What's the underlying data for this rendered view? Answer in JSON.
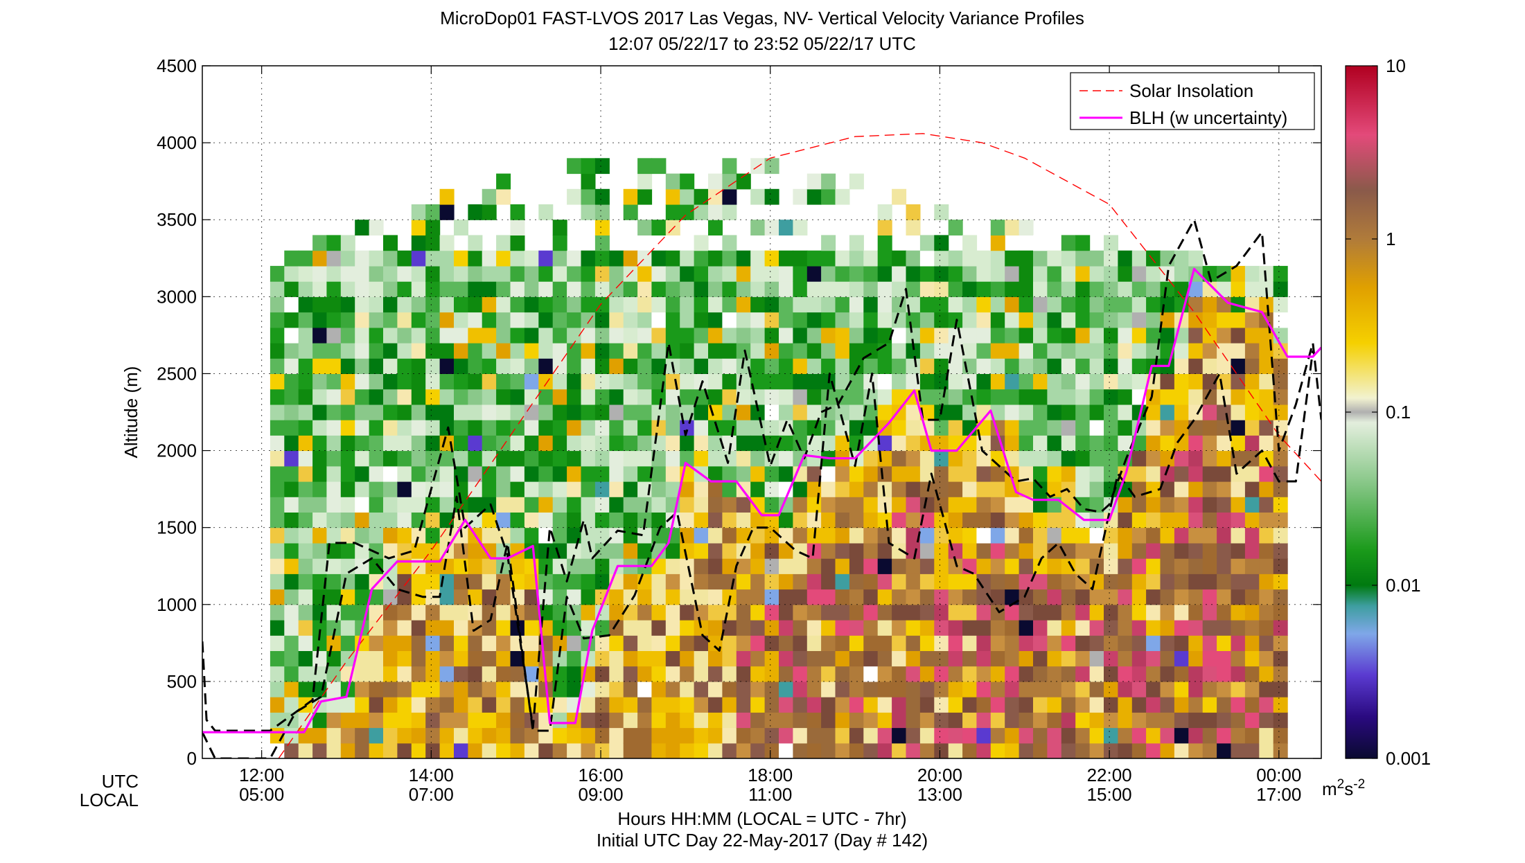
{
  "chart_data": {
    "type": "heatmap",
    "title": "MicroDop01 FAST-LVOS 2017 Las Vegas, NV- Vertical Velocity Variance Profiles",
    "subtitle": "12:07 05/22/17 to 23:52 05/22/17  UTC",
    "ylabel": "Altitude (m)",
    "xlabel": "Hours HH:MM  (LOCAL = UTC - 7hr)",
    "xlabel2": "Initial UTC Day 22-May-2017 (Day # 142)",
    "x_row_labels": [
      "UTC",
      "LOCAL"
    ],
    "xlim_utc_hours": [
      11.3,
      24.5
    ],
    "ylim": [
      0,
      4500
    ],
    "grid": true,
    "xticks": [
      {
        "hour": 12,
        "utc": "12:00",
        "local": "05:00"
      },
      {
        "hour": 14,
        "utc": "14:00",
        "local": "07:00"
      },
      {
        "hour": 16,
        "utc": "16:00",
        "local": "09:00"
      },
      {
        "hour": 18,
        "utc": "18:00",
        "local": "11:00"
      },
      {
        "hour": 20,
        "utc": "20:00",
        "local": "13:00"
      },
      {
        "hour": 22,
        "utc": "22:00",
        "local": "15:00"
      },
      {
        "hour": 24,
        "utc": "00:00",
        "local": "17:00"
      }
    ],
    "yticks": [
      "0",
      "500",
      "1000",
      "1500",
      "2000",
      "2500",
      "3000",
      "3500",
      "4000",
      "4500"
    ],
    "colorbar": {
      "scale": "log",
      "range": [
        0.001,
        10
      ],
      "ticks": [
        "0.001",
        "0.01",
        "0.1",
        "1",
        "10"
      ],
      "unit_base": "m",
      "unit_exp1": "2",
      "unit_mid": "s",
      "unit_exp2": "-2"
    },
    "legend": {
      "placement": "top-right",
      "entries": [
        {
          "label": "Solar Insolation",
          "color": "#ff0000",
          "style": "dashed"
        },
        {
          "label": "BLH (w uncertainty)",
          "color": "#ff00ff",
          "style": "solid"
        }
      ]
    },
    "series": [
      {
        "name": "BLH (w uncertainty)",
        "x": [
          11.3,
          11.9,
          12.1,
          12.5,
          12.7,
          13.0,
          13.3,
          13.6,
          14.1,
          14.4,
          14.7,
          14.9,
          15.2,
          15.4,
          15.7,
          15.9,
          16.2,
          16.6,
          16.8,
          17.0,
          17.3,
          17.6,
          17.9,
          18.1,
          18.4,
          18.7,
          19.0,
          19.4,
          19.7,
          19.9,
          20.2,
          20.6,
          20.9,
          21.1,
          21.4,
          21.7,
          22.0,
          22.2,
          22.5,
          22.7,
          23.0,
          23.4,
          23.8,
          24.1,
          24.4,
          24.5
        ],
        "y": [
          170,
          170,
          170,
          170,
          370,
          400,
          1100,
          1280,
          1280,
          1550,
          1300,
          1300,
          1380,
          230,
          230,
          830,
          1250,
          1250,
          1400,
          1920,
          1800,
          1800,
          1580,
          1580,
          1970,
          1950,
          1950,
          2180,
          2390,
          2000,
          2000,
          2260,
          1730,
          1680,
          1680,
          1550,
          1550,
          1860,
          2550,
          2550,
          3180,
          2960,
          2900,
          2610,
          2610,
          2670
        ]
      },
      {
        "name": "BLH upper bound",
        "x": [
          11.3,
          11.35,
          11.45,
          12.1,
          12.6,
          12.8,
          13.1,
          13.5,
          13.8,
          14.2,
          14.4,
          14.7,
          14.9,
          15.2,
          15.4,
          15.6,
          15.8,
          15.9,
          16.2,
          16.5,
          16.8,
          17.0,
          17.2,
          17.5,
          17.7,
          18.0,
          18.2,
          18.4,
          18.6,
          18.8,
          19.1,
          19.4,
          19.6,
          19.8,
          20.0,
          20.2,
          20.5,
          20.7,
          20.9,
          21.1,
          21.3,
          21.5,
          21.7,
          21.9,
          22.0,
          22.2,
          22.5,
          22.7,
          23.0,
          23.2,
          23.5,
          23.8,
          24.0,
          24.2,
          24.4,
          24.5
        ],
        "y": [
          760,
          250,
          180,
          180,
          380,
          1400,
          1400,
          1300,
          1350,
          2150,
          1500,
          1650,
          1320,
          200,
          1500,
          1150,
          1550,
          1300,
          1480,
          1450,
          2700,
          2100,
          2450,
          1920,
          2650,
          1900,
          2200,
          1950,
          2250,
          2300,
          2600,
          2700,
          3050,
          2200,
          2200,
          2850,
          2000,
          1900,
          1800,
          1820,
          1700,
          1750,
          1620,
          1600,
          1650,
          1950,
          2350,
          3200,
          3500,
          3100,
          3200,
          3420,
          2000,
          2300,
          2700,
          2200
        ]
      },
      {
        "name": "BLH lower bound",
        "x": [
          11.3,
          11.45,
          11.6,
          11.9,
          12.1,
          12.4,
          12.7,
          13.0,
          13.3,
          13.6,
          13.9,
          14.1,
          14.3,
          14.5,
          14.7,
          14.9,
          15.2,
          15.4,
          15.6,
          15.8,
          16.1,
          16.4,
          16.7,
          16.9,
          17.2,
          17.4,
          17.6,
          17.8,
          18.0,
          18.3,
          18.5,
          18.7,
          19.0,
          19.2,
          19.4,
          19.7,
          19.9,
          20.2,
          20.4,
          20.7,
          21.0,
          21.2,
          21.4,
          21.6,
          21.8,
          22.1,
          22.3,
          22.6,
          22.8,
          23.0,
          23.3,
          23.5,
          23.8,
          24.0,
          24.2,
          24.4
        ],
        "y": [
          170,
          0,
          0,
          0,
          0,
          300,
          400,
          1200,
          1300,
          1100,
          1050,
          1050,
          1700,
          830,
          900,
          1400,
          180,
          180,
          1050,
          780,
          800,
          1060,
          1500,
          1600,
          800,
          700,
          1250,
          1500,
          1500,
          1350,
          1300,
          2500,
          1900,
          2500,
          1400,
          1300,
          1850,
          1250,
          1200,
          950,
          1050,
          1300,
          1400,
          1200,
          1100,
          1850,
          1700,
          1750,
          2050,
          2200,
          2500,
          1850,
          2000,
          1800,
          1800,
          2650
        ]
      },
      {
        "name": "Solar Insolation",
        "x": [
          12.2,
          13.0,
          14.0,
          15.0,
          16.0,
          17.0,
          18.0,
          19.0,
          19.8,
          20.5,
          21.0,
          22.0,
          23.0,
          24.0,
          24.5
        ],
        "y": [
          0,
          630,
          1350,
          2150,
          2950,
          3530,
          3900,
          4040,
          4060,
          4000,
          3900,
          3600,
          2900,
          2100,
          1800
        ]
      }
    ]
  }
}
